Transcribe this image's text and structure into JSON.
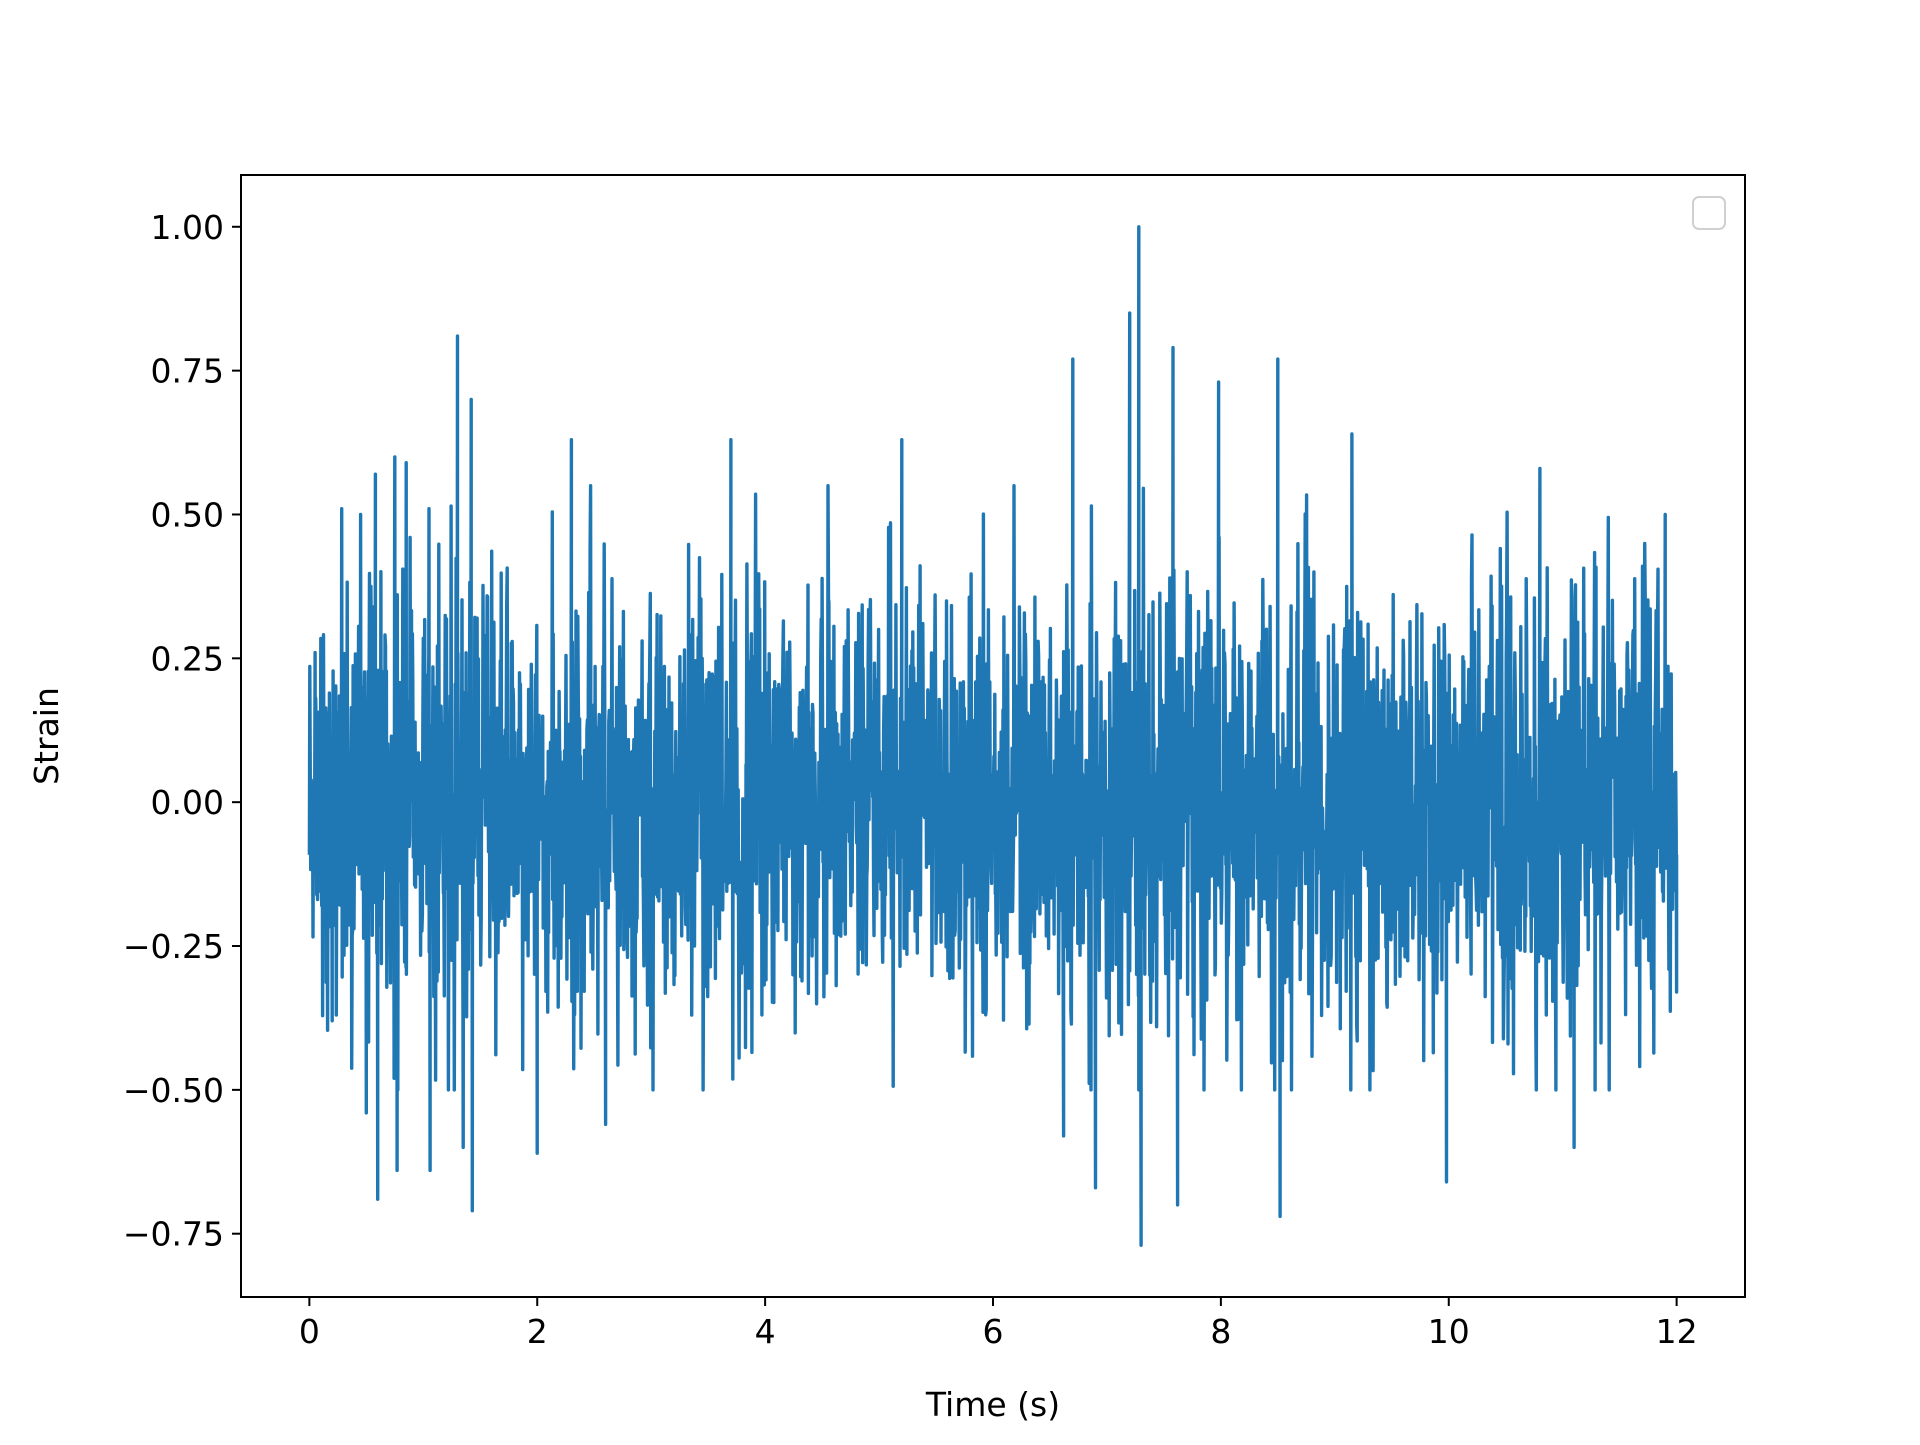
{
  "chart_data": {
    "type": "line",
    "title": "",
    "xlabel": "Time (s)",
    "ylabel": "Strain",
    "xlim": [
      -0.6,
      12.6
    ],
    "ylim": [
      -0.86,
      1.09
    ],
    "xticks": [
      0,
      2,
      4,
      6,
      8,
      10,
      12
    ],
    "xtick_labels": [
      "0",
      "2",
      "4",
      "6",
      "8",
      "10",
      "12"
    ],
    "yticks": [
      1.0,
      0.75,
      0.5,
      0.25,
      0.0,
      -0.25,
      -0.5,
      -0.75
    ],
    "ytick_labels": [
      "1.00",
      "0.75",
      "0.50",
      "0.25",
      "0.00",
      "−0.25",
      "−0.50",
      "−0.75"
    ],
    "grid": false,
    "legend": {
      "placement": "top-right",
      "entries": []
    },
    "series": [
      {
        "color": "#1f77b4",
        "x_range": [
          0,
          12
        ],
        "description_of_values": "dense noise-like strain signal sampled across 0–12 s",
        "envelope_peaks": [
          {
            "x": 0.05,
            "y": 0.26
          },
          {
            "x": 0.2,
            "y": -0.38
          },
          {
            "x": 0.45,
            "y": 0.5
          },
          {
            "x": 0.5,
            "y": -0.54
          },
          {
            "x": 0.58,
            "y": 0.57
          },
          {
            "x": 0.6,
            "y": -0.69
          },
          {
            "x": 0.75,
            "y": 0.6
          },
          {
            "x": 0.77,
            "y": -0.64
          },
          {
            "x": 0.85,
            "y": 0.59
          },
          {
            "x": 1.05,
            "y": 0.51
          },
          {
            "x": 1.06,
            "y": -0.64
          },
          {
            "x": 1.3,
            "y": 0.81
          },
          {
            "x": 1.35,
            "y": -0.6
          },
          {
            "x": 1.42,
            "y": 0.7
          },
          {
            "x": 1.43,
            "y": -0.71
          },
          {
            "x": 2.0,
            "y": -0.61
          },
          {
            "x": 2.3,
            "y": 0.63
          },
          {
            "x": 2.6,
            "y": -0.56
          },
          {
            "x": 3.7,
            "y": 0.63
          },
          {
            "x": 5.2,
            "y": 0.63
          },
          {
            "x": 6.7,
            "y": 0.77
          },
          {
            "x": 6.62,
            "y": -0.58
          },
          {
            "x": 6.9,
            "y": -0.67
          },
          {
            "x": 7.2,
            "y": 0.85
          },
          {
            "x": 7.28,
            "y": 1.0
          },
          {
            "x": 7.3,
            "y": -0.77
          },
          {
            "x": 7.58,
            "y": 0.79
          },
          {
            "x": 7.62,
            "y": -0.7
          },
          {
            "x": 7.98,
            "y": 0.73
          },
          {
            "x": 8.5,
            "y": 0.77
          },
          {
            "x": 8.52,
            "y": -0.72
          },
          {
            "x": 9.15,
            "y": 0.64
          },
          {
            "x": 9.98,
            "y": -0.66
          },
          {
            "x": 10.8,
            "y": 0.58
          },
          {
            "x": 11.1,
            "y": -0.6
          },
          {
            "x": 11.9,
            "y": 0.5
          },
          {
            "x": 12.0,
            "y": -0.33
          }
        ],
        "typical_amplitude": 0.3
      }
    ]
  }
}
